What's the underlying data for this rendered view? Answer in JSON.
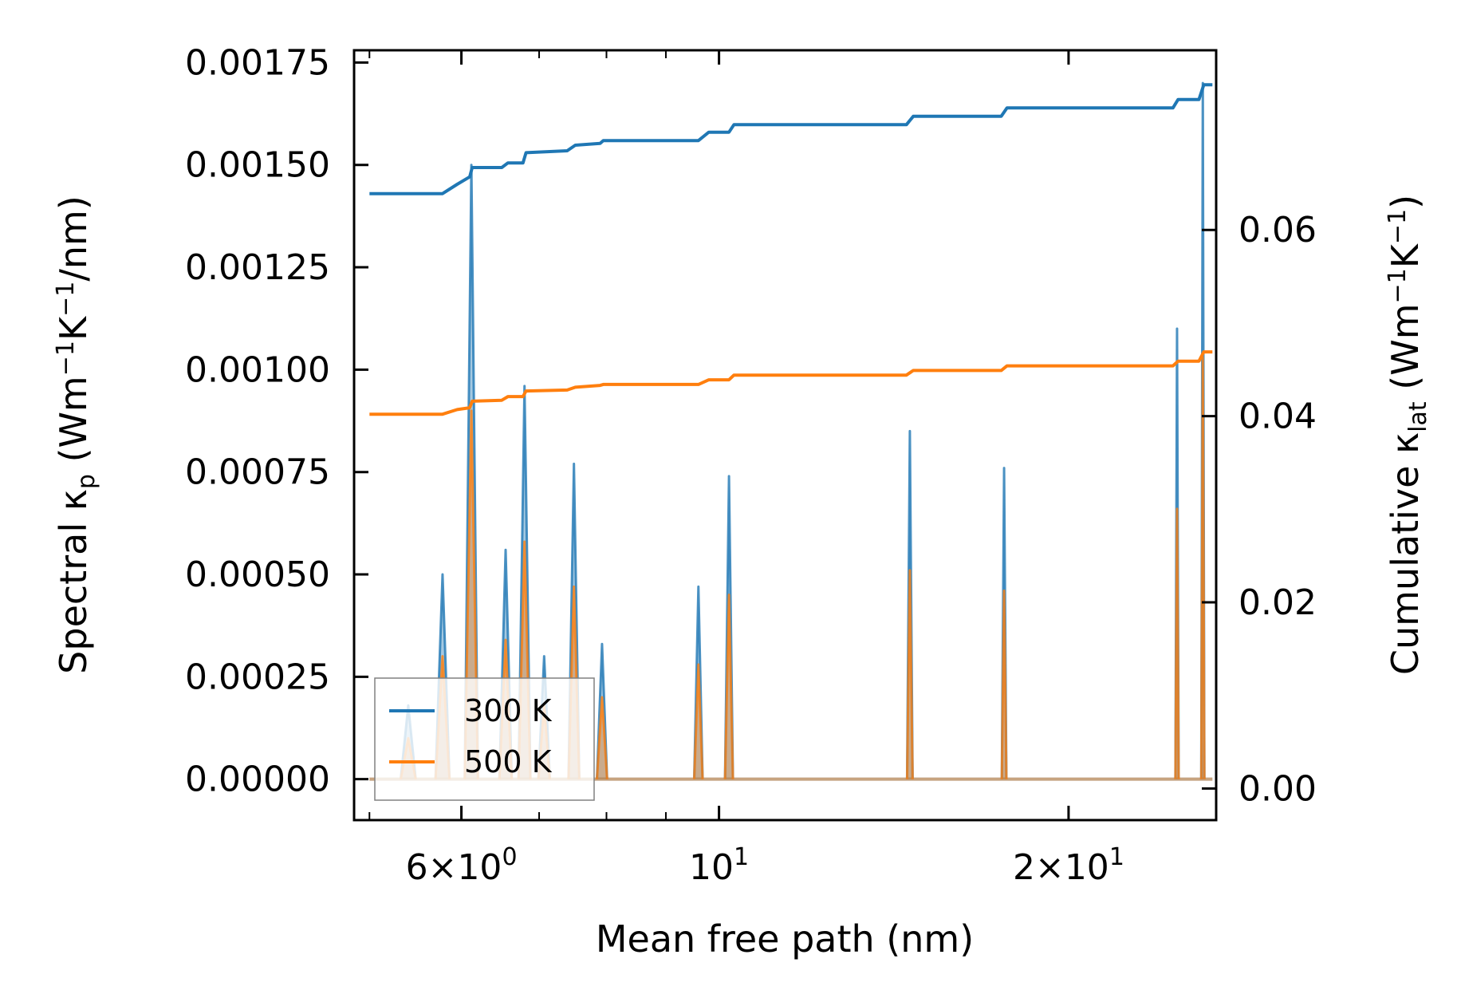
{
  "chart_data": {
    "type": "line",
    "title": "",
    "xlabel": "Mean free path (nm)",
    "ylabel_left": "Spectral κ_p (Wm^-1K^-1/nm)",
    "ylabel_right": "Cumulative κ_lat (Wm^-1K^-1)",
    "xscale": "log",
    "xlim": [
      4.85,
      26.8
    ],
    "ylim_left": [
      -0.0001,
      0.00178
    ],
    "ylim_right": [
      -0.0034,
      0.0793
    ],
    "x_ticks": [
      {
        "value": 6,
        "mant": "6",
        "exp": "0"
      },
      {
        "value": 10,
        "mant": "",
        "exp": "1"
      },
      {
        "value": 20,
        "mant": "2",
        "exp": "1"
      }
    ],
    "y_ticks_left": [
      {
        "value": 0,
        "label": "0.00000"
      },
      {
        "value": 0.00025,
        "label": "0.00025"
      },
      {
        "value": 0.0005,
        "label": "0.00050"
      },
      {
        "value": 0.00075,
        "label": "0.00075"
      },
      {
        "value": 0.001,
        "label": "0.00100"
      },
      {
        "value": 0.00125,
        "label": "0.00125"
      },
      {
        "value": 0.0015,
        "label": "0.00150"
      },
      {
        "value": 0.00175,
        "label": "0.00175"
      }
    ],
    "y_ticks_right": [
      {
        "value": 0,
        "label": "0.00"
      },
      {
        "value": 0.02,
        "label": "0.02"
      },
      {
        "value": 0.04,
        "label": "0.04"
      },
      {
        "value": 0.06,
        "label": "0.06"
      }
    ],
    "peak_half_width_x": 0.08,
    "peaks": [
      {
        "x": 5.4,
        "s300": 0.00018,
        "s500": 0.0001
      },
      {
        "x": 5.78,
        "s300": 0.0005,
        "s500": 0.0003
      },
      {
        "x": 6.12,
        "s300": 0.0015,
        "s500": 0.0009
      },
      {
        "x": 6.55,
        "s300": 0.00056,
        "s500": 0.00034
      },
      {
        "x": 6.8,
        "s300": 0.00096,
        "s500": 0.00058
      },
      {
        "x": 7.07,
        "s300": 0.0003,
        "s500": 0.00018
      },
      {
        "x": 7.5,
        "s300": 0.00077,
        "s500": 0.00047
      },
      {
        "x": 7.93,
        "s300": 0.00033,
        "s500": 0.0002
      },
      {
        "x": 9.6,
        "s300": 0.00047,
        "s500": 0.00028
      },
      {
        "x": 10.2,
        "s300": 0.00074,
        "s500": 0.00045
      },
      {
        "x": 14.6,
        "s300": 0.00085,
        "s500": 0.00051
      },
      {
        "x": 17.6,
        "s300": 0.00076,
        "s500": 0.00046
      },
      {
        "x": 24.8,
        "s300": 0.0011,
        "s500": 0.00066
      },
      {
        "x": 26.1,
        "s300": 0.0017,
        "s500": 0.00103
      }
    ],
    "series": [
      {
        "name": "300 K",
        "color": "#1f77b4",
        "cumulative": [
          [
            5.0,
            0.0639
          ],
          [
            5.78,
            0.0639
          ],
          [
            5.95,
            0.0649
          ],
          [
            6.1,
            0.0657
          ],
          [
            6.13,
            0.0667
          ],
          [
            6.5,
            0.0667
          ],
          [
            6.58,
            0.0672
          ],
          [
            6.78,
            0.0672
          ],
          [
            6.82,
            0.0683
          ],
          [
            7.4,
            0.0685
          ],
          [
            7.52,
            0.0691
          ],
          [
            7.9,
            0.0693
          ],
          [
            7.95,
            0.0696
          ],
          [
            9.6,
            0.0696
          ],
          [
            9.8,
            0.0705
          ],
          [
            10.2,
            0.0705
          ],
          [
            10.3,
            0.0713
          ],
          [
            14.5,
            0.0713
          ],
          [
            14.7,
            0.0722
          ],
          [
            17.5,
            0.0722
          ],
          [
            17.7,
            0.0731
          ],
          [
            24.6,
            0.0731
          ],
          [
            24.85,
            0.074
          ],
          [
            25.9,
            0.074
          ],
          [
            26.15,
            0.0756
          ],
          [
            26.6,
            0.0756
          ]
        ]
      },
      {
        "name": "500 K",
        "color": "#ff7f0e",
        "cumulative": [
          [
            5.0,
            0.0402
          ],
          [
            5.78,
            0.0402
          ],
          [
            5.95,
            0.0407
          ],
          [
            6.1,
            0.0409
          ],
          [
            6.13,
            0.0416
          ],
          [
            6.5,
            0.0417
          ],
          [
            6.58,
            0.0421
          ],
          [
            6.78,
            0.0421
          ],
          [
            6.82,
            0.0427
          ],
          [
            7.4,
            0.0428
          ],
          [
            7.52,
            0.0431
          ],
          [
            7.9,
            0.0433
          ],
          [
            7.95,
            0.0434
          ],
          [
            9.6,
            0.0434
          ],
          [
            9.8,
            0.0439
          ],
          [
            10.2,
            0.0439
          ],
          [
            10.3,
            0.0444
          ],
          [
            14.5,
            0.0444
          ],
          [
            14.7,
            0.0449
          ],
          [
            17.5,
            0.0449
          ],
          [
            17.7,
            0.0454
          ],
          [
            24.6,
            0.0454
          ],
          [
            24.85,
            0.0459
          ],
          [
            25.9,
            0.0459
          ],
          [
            26.15,
            0.0469
          ],
          [
            26.6,
            0.0469
          ]
        ]
      }
    ],
    "legend": {
      "position": "lower-left",
      "entries": [
        "300 K",
        "500 K"
      ]
    }
  }
}
